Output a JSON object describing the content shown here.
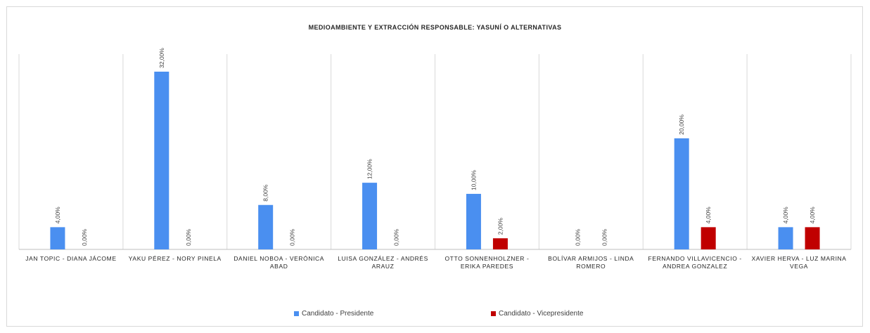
{
  "chart_data": {
    "type": "bar",
    "title": "MEDIOAMBIENTE Y EXTRACCIÓN RESPONSABLE: YASUNÍ O ALTERNATIVAS",
    "categories": [
      "JAN TOPIC - DIANA JÁCOME",
      "YAKU PÉREZ - NORY PINELA",
      "DANIEL NOBOA - VERÓNICA ABAD",
      "LUISA GONZÁLEZ - ANDRÉS ARAUZ",
      "OTTO SONNENHOLZNER - ERIKA PAREDES",
      "BOLÍVAR ARMIJOS - LINDA ROMERO",
      "FERNANDO VILLAVICENCIO - ANDREA GONZALEZ",
      "XAVIER HERVA - LUZ MARINA VEGA"
    ],
    "series": [
      {
        "name": "Candidato - Presidente",
        "color": "#4a8ff0",
        "values": [
          4,
          32,
          8,
          12,
          10,
          0,
          20,
          4
        ],
        "labels": [
          "4,00%",
          "32,00%",
          "8,00%",
          "12,00%",
          "10,00%",
          "0,00%",
          "20,00%",
          "4,00%"
        ]
      },
      {
        "name": "Candidato - Vicepresidente",
        "color": "#c00000",
        "values": [
          0,
          0,
          0,
          0,
          2,
          0,
          4,
          4
        ],
        "labels": [
          "0,00%",
          "0,00%",
          "0,00%",
          "0,00%",
          "2,00%",
          "0,00%",
          "4,00%",
          "4,00%"
        ]
      }
    ],
    "ylim": [
      0,
      35
    ],
    "grid": false,
    "legend": "bottom"
  }
}
